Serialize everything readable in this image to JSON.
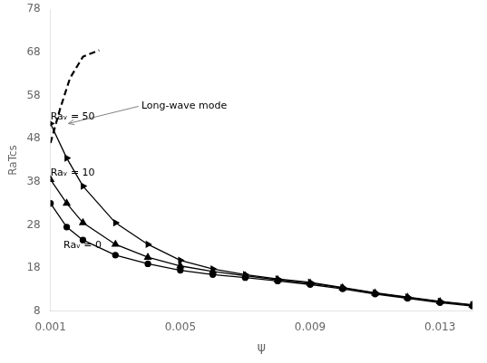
{
  "chart_data": {
    "type": "line",
    "x_label": "ψ",
    "y_label": "RaTcs",
    "xlim": [
      0.001,
      0.014
    ],
    "ylim": [
      8,
      78
    ],
    "xticks": [
      0.001,
      {
        "value": 0.003,
        "label": ""
      },
      0.005,
      {
        "value": 0.007,
        "label": ""
      },
      0.009,
      {
        "value": 0.011,
        "label": ""
      },
      0.013
    ],
    "yticks": [
      8,
      18,
      28,
      38,
      48,
      58,
      68,
      78
    ],
    "grid": false,
    "series": [
      {
        "name": "Raᵥ = 0",
        "color": "#000000",
        "marker": "circle",
        "line_style": "solid",
        "x": [
          0.001,
          0.0015,
          0.002,
          0.003,
          0.004,
          0.005,
          0.006,
          0.007,
          0.008,
          0.009,
          0.01,
          0.011,
          0.012,
          0.013,
          0.014
        ],
        "values": [
          33.0,
          27.5,
          24.5,
          21.0,
          19.0,
          17.5,
          16.5,
          15.8,
          15.0,
          14.2,
          13.2,
          12.0,
          11.0,
          10.0,
          9.2
        ]
      },
      {
        "name": "Raᵥ = 10",
        "color": "#000000",
        "marker": "triangle",
        "line_style": "solid",
        "x": [
          0.001,
          0.0015,
          0.002,
          0.003,
          0.004,
          0.005,
          0.006,
          0.007,
          0.008,
          0.009,
          0.01,
          0.011,
          0.012,
          0.013,
          0.014
        ],
        "values": [
          38.5,
          33.0,
          28.5,
          23.5,
          20.5,
          18.5,
          17.2,
          16.2,
          15.3,
          14.5,
          13.4,
          12.2,
          11.2,
          10.2,
          9.4
        ]
      },
      {
        "name": "Raᵥ = 50",
        "color": "#000000",
        "marker": "triangle-right",
        "line_style": "solid",
        "x": [
          0.001,
          0.0015,
          0.002,
          0.003,
          0.004,
          0.005,
          0.006,
          0.007,
          0.008,
          0.009,
          0.01,
          0.011,
          0.012,
          0.013,
          0.014
        ],
        "values": [
          51.5,
          43.5,
          37.0,
          28.5,
          23.5,
          19.8,
          17.8,
          16.5,
          15.5,
          14.7,
          13.5,
          12.3,
          11.3,
          10.3,
          9.5
        ]
      },
      {
        "name": "Long-wave mode",
        "color": "#000000",
        "marker": "none",
        "line_style": "dashed",
        "x": [
          0.001,
          0.0013,
          0.0016,
          0.002,
          0.0025
        ],
        "values": [
          47.0,
          55.0,
          62.0,
          67.0,
          68.5
        ]
      }
    ],
    "annotations": [
      {
        "text": "Long-wave mode",
        "x": 0.0038,
        "y": 55.5,
        "arrow_to": [
          0.00155,
          51.5
        ]
      },
      {
        "text": "Raᵥ = 50",
        "x": 0.001,
        "y": 51.8
      },
      {
        "text": "Raᵥ = 10",
        "x": 0.001,
        "y": 38.8
      },
      {
        "text": "Raᵥ = 0",
        "x": 0.0014,
        "y": 22.0
      }
    ],
    "legend": false
  }
}
